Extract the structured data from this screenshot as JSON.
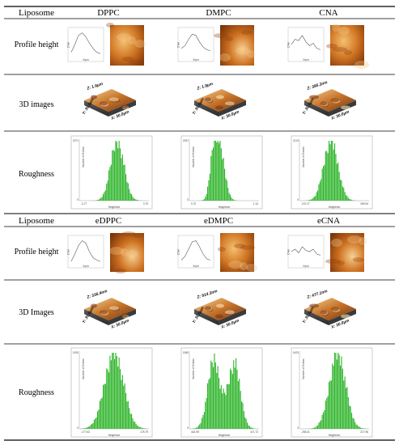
{
  "table": {
    "sections": [
      {
        "header": "Liposome",
        "columns": [
          "DPPC",
          "DMPC",
          "CNA"
        ],
        "rows": {
          "profile_height": "Profile height",
          "images_3d": "3D images",
          "roughness": "Roughness"
        },
        "z_heights": [
          "Z: 1.6µm",
          "Z: 1.9µm",
          "Z: 385.3nm"
        ],
        "hist_x_ticks": [
          [
            "-3.77",
            "3.79"
          ],
          [
            "0.70",
            "1.14"
          ],
          [
            "-247.27",
            "269.94"
          ]
        ],
        "hist_y_top": [
          "2371",
          "2267",
          "2113"
        ],
        "hist_y_bottom": [
          "0",
          "0",
          "0"
        ]
      },
      {
        "header": "Liposome",
        "columns": [
          "eDPPC",
          "eDMPC",
          "eCNA"
        ],
        "rows": {
          "profile_height": "Profile height",
          "images_3d": "3D Images",
          "roughness": "Roughness"
        },
        "z_heights": [
          "Z: 336.4nm",
          "Z: 914.3nm",
          "Z: 477.1nm"
        ],
        "hist_x_ticks": [
          [
            "-177.63",
            "178.79"
          ],
          [
            "442.59",
            "471.72"
          ],
          [
            "-255.41",
            "217.96"
          ]
        ],
        "hist_y_top": [
          "1920",
          "1580",
          "1623"
        ],
        "hist_y_bottom": [
          "0",
          "0",
          "0"
        ]
      }
    ],
    "scan_labels": {
      "x": "X: 30.0µm",
      "y": "Y: 30.0µm"
    },
    "hist_axis": {
      "ylabel": "Number of Events",
      "xlabel": "Height/nm"
    },
    "profile_axis": {
      "ylabel": "Z/nm",
      "xlabel": "X/µm"
    },
    "colors": {
      "bar": "#2fb52b",
      "afm_dark": "#8a3d0a",
      "afm_mid": "#c96a1c",
      "afm_light": "#f0b060",
      "rule": "#000000"
    }
  }
}
